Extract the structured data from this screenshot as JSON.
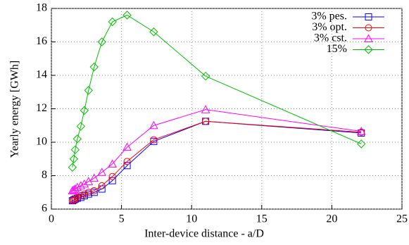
{
  "chart_data": {
    "type": "line",
    "xlabel": "Inter-device distance - a/D",
    "ylabel": "Yearly energy [GWh]",
    "x": [
      1.5,
      1.6,
      1.7,
      1.85,
      2.1,
      2.35,
      2.65,
      3.05,
      3.6,
      4.35,
      5.4,
      7.3,
      11.0,
      22.1
    ],
    "series": [
      {
        "name": "3% pes.",
        "color": "#0000ff",
        "marker": "square",
        "values": [
          6.5,
          6.55,
          6.6,
          6.65,
          6.7,
          6.8,
          6.9,
          7.0,
          7.2,
          7.7,
          8.6,
          10.05,
          11.25,
          10.55
        ]
      },
      {
        "name": "3% opt.",
        "color": "#ff0000",
        "marker": "circle",
        "values": [
          6.5,
          6.55,
          6.6,
          6.7,
          6.8,
          6.9,
          7.0,
          7.1,
          7.4,
          7.95,
          8.85,
          10.15,
          11.25,
          10.6
        ]
      },
      {
        "name": "3% cst.",
        "color": "#ff00ff",
        "marker": "triangle",
        "values": [
          7.1,
          7.15,
          7.2,
          7.3,
          7.4,
          7.5,
          7.65,
          7.85,
          8.2,
          8.7,
          9.7,
          11.0,
          11.95,
          10.65
        ]
      },
      {
        "name": "15%",
        "color": "#00c000",
        "marker": "diamond",
        "values": [
          8.5,
          9.0,
          9.55,
          10.2,
          10.95,
          11.9,
          13.1,
          14.5,
          16.0,
          17.2,
          17.6,
          16.6,
          13.95,
          9.9
        ]
      }
    ],
    "xlim": [
      0,
      25
    ],
    "xticks": [
      0,
      5,
      10,
      15,
      20,
      25
    ],
    "ylim": [
      6,
      18
    ],
    "yticks": [
      6,
      8,
      10,
      12,
      14,
      16,
      18
    ],
    "grid": true,
    "legend": "top-right"
  }
}
